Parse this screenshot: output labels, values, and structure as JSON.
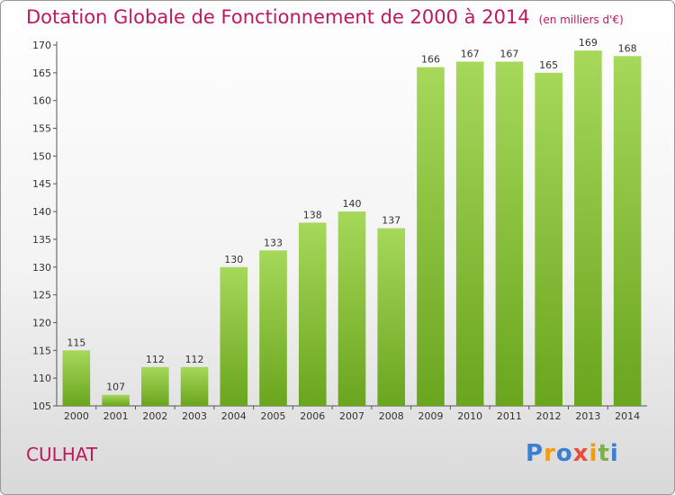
{
  "header": {
    "title": "Dotation Globale de Fonctionnement de 2000 à 2014",
    "unit": "(en milliers d'€)"
  },
  "footer": {
    "commune": "CULHAT",
    "logo": [
      "P",
      "r",
      "o",
      "x",
      "i",
      "t",
      "i"
    ]
  },
  "colors": {
    "title": "#c2185b",
    "bar_light": "#a6d85a",
    "bar_dark": "#6aa51e",
    "logo": [
      "#3a7fd0",
      "#f39c12",
      "#3a7fd0",
      "#e74c3c",
      "#f39c12",
      "#7cb342",
      "#3a7fd0"
    ]
  },
  "chart_data": {
    "type": "bar",
    "title": "Dotation Globale de Fonctionnement de 2000 à 2014",
    "xlabel": "",
    "ylabel": "",
    "categories": [
      "2000",
      "2001",
      "2002",
      "2003",
      "2004",
      "2005",
      "2006",
      "2007",
      "2008",
      "2009",
      "2010",
      "2011",
      "2012",
      "2013",
      "2014"
    ],
    "values": [
      115,
      107,
      112,
      112,
      130,
      133,
      138,
      140,
      137,
      166,
      167,
      167,
      165,
      169,
      168
    ],
    "ylim": [
      105,
      170
    ],
    "yticks": [
      105,
      110,
      115,
      120,
      125,
      130,
      135,
      140,
      145,
      150,
      155,
      160,
      165,
      170
    ],
    "grid": false,
    "legend": "none"
  }
}
